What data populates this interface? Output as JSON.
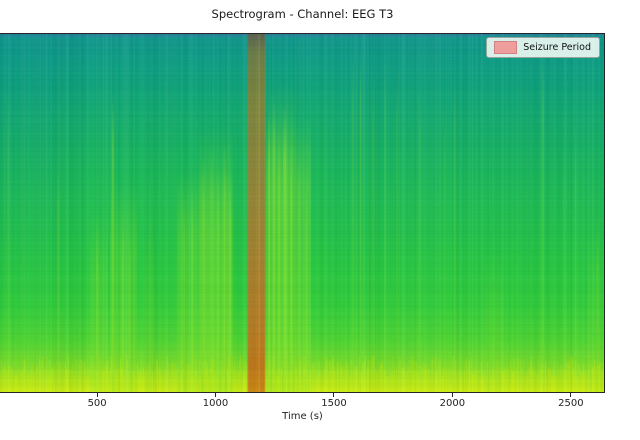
{
  "figure": {
    "title": "Spectrogram - Channel: EEG T3",
    "xlabel": "Time (s)",
    "background": "#ffffff"
  },
  "legend": {
    "label": "Seizure Period",
    "patch_color": "#ef9e9e",
    "patch_border": "#d28080"
  },
  "chart_data": {
    "type": "heatmap",
    "title": "Spectrogram - Channel: EEG T3",
    "xlabel": "Time (s)",
    "ylabel": "",
    "x_axis": {
      "min": 90,
      "max": 2640,
      "ticks": [
        500,
        1000,
        1500,
        2000,
        2500
      ],
      "unit": "s"
    },
    "y_axis": {
      "label": "",
      "tick_labels_visible": false
    },
    "legend": [
      {
        "label": "Seizure Period",
        "color": "#ef9e9e"
      }
    ],
    "grid": false,
    "legend_position": "upper right",
    "seizure_period": {
      "t0": 1135,
      "t1": 1210,
      "gradient": [
        {
          "at": 0.0,
          "color": "#5e6350"
        },
        {
          "at": 0.05,
          "color": "#6f7f4a"
        },
        {
          "at": 0.18,
          "color": "#7f883f"
        },
        {
          "at": 0.4,
          "color": "#93893a"
        },
        {
          "at": 0.6,
          "color": "#a68532"
        },
        {
          "at": 0.78,
          "color": "#b67e27"
        },
        {
          "at": 0.93,
          "color": "#c47a1c"
        },
        {
          "at": 1.0,
          "color": "#cf8a14"
        }
      ]
    },
    "power_gradient_stops": [
      {
        "at": 0.0,
        "color": "#2a7fa0"
      },
      {
        "at": 0.012,
        "color": "#13998f"
      },
      {
        "at": 0.1,
        "color": "#10a284"
      },
      {
        "at": 0.22,
        "color": "#14ac71"
      },
      {
        "at": 0.36,
        "color": "#1bb85e"
      },
      {
        "at": 0.5,
        "color": "#22c150"
      },
      {
        "at": 0.64,
        "color": "#29c943"
      },
      {
        "at": 0.76,
        "color": "#33cf3b"
      },
      {
        "at": 0.86,
        "color": "#50d633"
      },
      {
        "at": 0.925,
        "color": "#7ddf2b"
      },
      {
        "at": 0.965,
        "color": "#a8e723"
      },
      {
        "at": 1.0,
        "color": "#c9ee1a"
      }
    ],
    "dark_regions": [
      {
        "t0": 90,
        "t1": 335,
        "a": 0.2,
        "y1": 0.85,
        "color": "#0a8f8f"
      },
      {
        "t0": 335,
        "t1": 465,
        "a": 0.07,
        "y1": 0.9,
        "color": "#0a8f8f"
      },
      {
        "t0": 1480,
        "t1": 2645,
        "a": 0.1,
        "y1": 0.85,
        "color": "#0c9a86"
      }
    ],
    "bright_color": "#8ce62e",
    "bright_regions": [
      {
        "t0": 470,
        "t1": 545,
        "y0": 0.5,
        "a": 0.2
      },
      {
        "t0": 555,
        "t1": 670,
        "y0": 0.42,
        "a": 0.25
      },
      {
        "t0": 700,
        "t1": 742,
        "y0": 0.55,
        "a": 0.12
      },
      {
        "t0": 838,
        "t1": 1072,
        "y0": 0.38,
        "a": 0.3
      },
      {
        "t0": 930,
        "t1": 1072,
        "y0": 0.26,
        "a": 0.2
      },
      {
        "t0": 1213,
        "t1": 1402,
        "y0": 0.24,
        "a": 0.32
      },
      {
        "t0": 1222,
        "t1": 1335,
        "y0": 0.14,
        "a": 0.18
      },
      {
        "t0": 2140,
        "t1": 2215,
        "y0": 0.6,
        "a": 0.14
      },
      {
        "t0": 2570,
        "t1": 2640,
        "y0": 0.55,
        "a": 0.12
      }
    ],
    "streak_color": "#a4ee26",
    "streaks": [
      {
        "t": 124,
        "w": 1,
        "y0": 0.15,
        "a": 0.22
      },
      {
        "t": 336,
        "w": 2,
        "y0": 0.35,
        "a": 0.18
      },
      {
        "t": 500,
        "w": 2,
        "y0": 0.5,
        "a": 0.28
      },
      {
        "t": 567,
        "w": 2,
        "y0": 0.17,
        "a": 0.4
      },
      {
        "t": 608,
        "w": 2,
        "y0": 0.5,
        "a": 0.26
      },
      {
        "t": 638,
        "w": 2,
        "y0": 0.55,
        "a": 0.24
      },
      {
        "t": 723,
        "w": 1,
        "y0": 0.4,
        "a": 0.22
      },
      {
        "t": 868,
        "w": 2,
        "y0": 0.45,
        "a": 0.28
      },
      {
        "t": 902,
        "w": 2,
        "y0": 0.42,
        "a": 0.26
      },
      {
        "t": 948,
        "w": 3,
        "y0": 0.34,
        "a": 0.32
      },
      {
        "t": 983,
        "w": 2,
        "y0": 0.3,
        "a": 0.3
      },
      {
        "t": 1012,
        "w": 2,
        "y0": 0.36,
        "a": 0.28
      },
      {
        "t": 1040,
        "w": 3,
        "y0": 0.3,
        "a": 0.32
      },
      {
        "t": 1062,
        "w": 2,
        "y0": 0.38,
        "a": 0.26
      },
      {
        "t": 1225,
        "w": 2,
        "y0": 0.22,
        "a": 0.36
      },
      {
        "t": 1247,
        "w": 2,
        "y0": 0.18,
        "a": 0.4
      },
      {
        "t": 1268,
        "w": 2,
        "y0": 0.28,
        "a": 0.36
      },
      {
        "t": 1292,
        "w": 3,
        "y0": 0.2,
        "a": 0.42
      },
      {
        "t": 1320,
        "w": 2,
        "y0": 0.3,
        "a": 0.36
      },
      {
        "t": 1352,
        "w": 2,
        "y0": 0.34,
        "a": 0.3
      },
      {
        "t": 1382,
        "w": 2,
        "y0": 0.4,
        "a": 0.26
      },
      {
        "t": 1580,
        "w": 1,
        "y0": 0.06,
        "a": 0.3
      },
      {
        "t": 1612,
        "w": 1,
        "y0": 0.05,
        "a": 0.34
      },
      {
        "t": 1665,
        "w": 1,
        "y0": 0.1,
        "a": 0.26
      },
      {
        "t": 1716,
        "w": 1,
        "y0": 0.06,
        "a": 0.3
      },
      {
        "t": 1766,
        "w": 1,
        "y0": 0.1,
        "a": 0.26
      },
      {
        "t": 1863,
        "w": 1,
        "y0": 0.15,
        "a": 0.26
      },
      {
        "t": 1968,
        "w": 1,
        "y0": 0.2,
        "a": 0.22
      },
      {
        "t": 2010,
        "w": 1,
        "y0": 0.12,
        "a": 0.26
      },
      {
        "t": 2383,
        "w": 1,
        "y0": 0.05,
        "a": 0.4
      },
      {
        "t": 2470,
        "w": 1,
        "y0": 0.3,
        "a": 0.2
      },
      {
        "t": 2520,
        "w": 1,
        "y0": 0.25,
        "a": 0.24
      },
      {
        "t": 2612,
        "w": 2,
        "y0": 0.5,
        "a": 0.26
      }
    ],
    "bottom_hot_band": {
      "y0": 0.93,
      "color": "#d8f000",
      "max_alpha": 0.3
    },
    "noise": {
      "seed": 1337,
      "column_alpha": 0.09,
      "row_alpha": 0.05
    }
  }
}
